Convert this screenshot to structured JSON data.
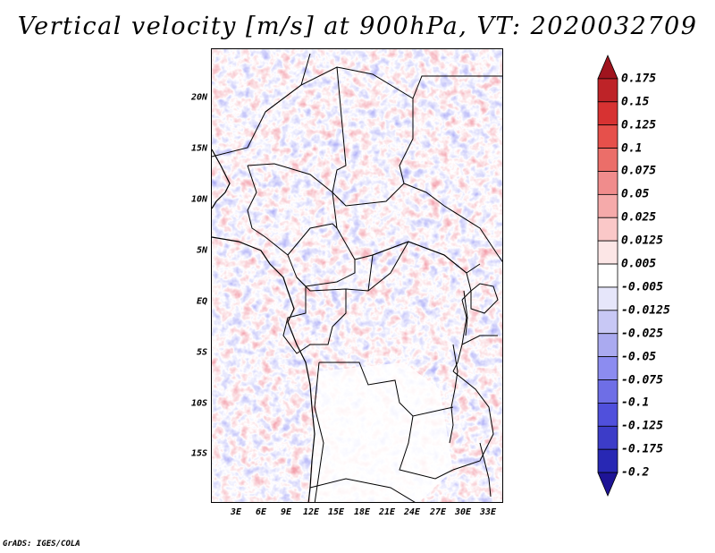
{
  "title": "Vertical velocity [m/s] at 900hPa, VT: 2020032709",
  "credit": "GrADS: IGES/COLA",
  "map": {
    "lat_labels": [
      "20N",
      "15N",
      "10N",
      "5N",
      "EQ",
      "5S",
      "10S",
      "15S"
    ],
    "lon_labels": [
      "3E",
      "6E",
      "9E",
      "12E",
      "15E",
      "18E",
      "21E",
      "24E",
      "27E",
      "30E",
      "33E"
    ]
  },
  "colorbar": {
    "levels": [
      "0.175",
      "0.15",
      "0.125",
      "0.1",
      "0.075",
      "0.05",
      "0.025",
      "0.0125",
      "0.005",
      "-0.005",
      "-0.0125",
      "-0.025",
      "-0.05",
      "-0.075",
      "-0.1",
      "-0.125",
      "-0.175",
      "-0.2"
    ],
    "colors": [
      "#a0141e",
      "#be2328",
      "#d73232",
      "#e6504b",
      "#eb6e69",
      "#f08c8c",
      "#f5aaaa",
      "#fac8c8",
      "#fce6e6",
      "#ffffff",
      "#e6e6fa",
      "#c8c8f5",
      "#aaaaf0",
      "#8c8cf0",
      "#6e6ee6",
      "#5050dc",
      "#3c3cc8",
      "#2828b4",
      "#1e1496"
    ]
  }
}
